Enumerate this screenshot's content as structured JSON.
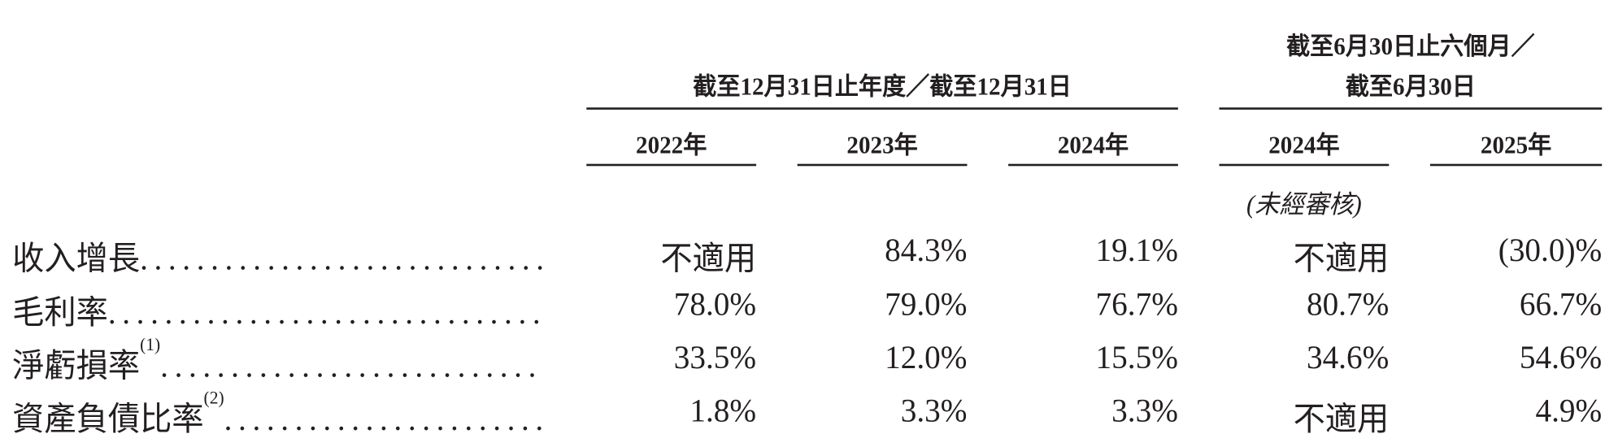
{
  "header": {
    "group1": "截至12月31日止年度／截至12月31日",
    "group2_line1": "截至6月30日止六個月／",
    "group2_line2": "截至6月30日",
    "years": [
      "2022年",
      "2023年",
      "2024年",
      "2024年",
      "2025年"
    ],
    "unaudited": "(未經審核)"
  },
  "rows": [
    {
      "label": "收入增長",
      "note": "",
      "values": [
        "不適用",
        "84.3%",
        "19.1%",
        "不適用",
        "(30.0)%"
      ]
    },
    {
      "label": "毛利率",
      "note": "",
      "values": [
        "78.0%",
        "79.0%",
        "76.7%",
        "80.7%",
        "66.7%"
      ]
    },
    {
      "label": "淨虧損率",
      "note": "(1)",
      "values": [
        "33.5%",
        "12.0%",
        "15.5%",
        "34.6%",
        "54.6%"
      ]
    },
    {
      "label": "資產負債比率",
      "note": "(2)",
      "values": [
        "1.8%",
        "3.3%",
        "3.3%",
        "不適用",
        "4.9%"
      ]
    }
  ],
  "leader": "........................................"
}
